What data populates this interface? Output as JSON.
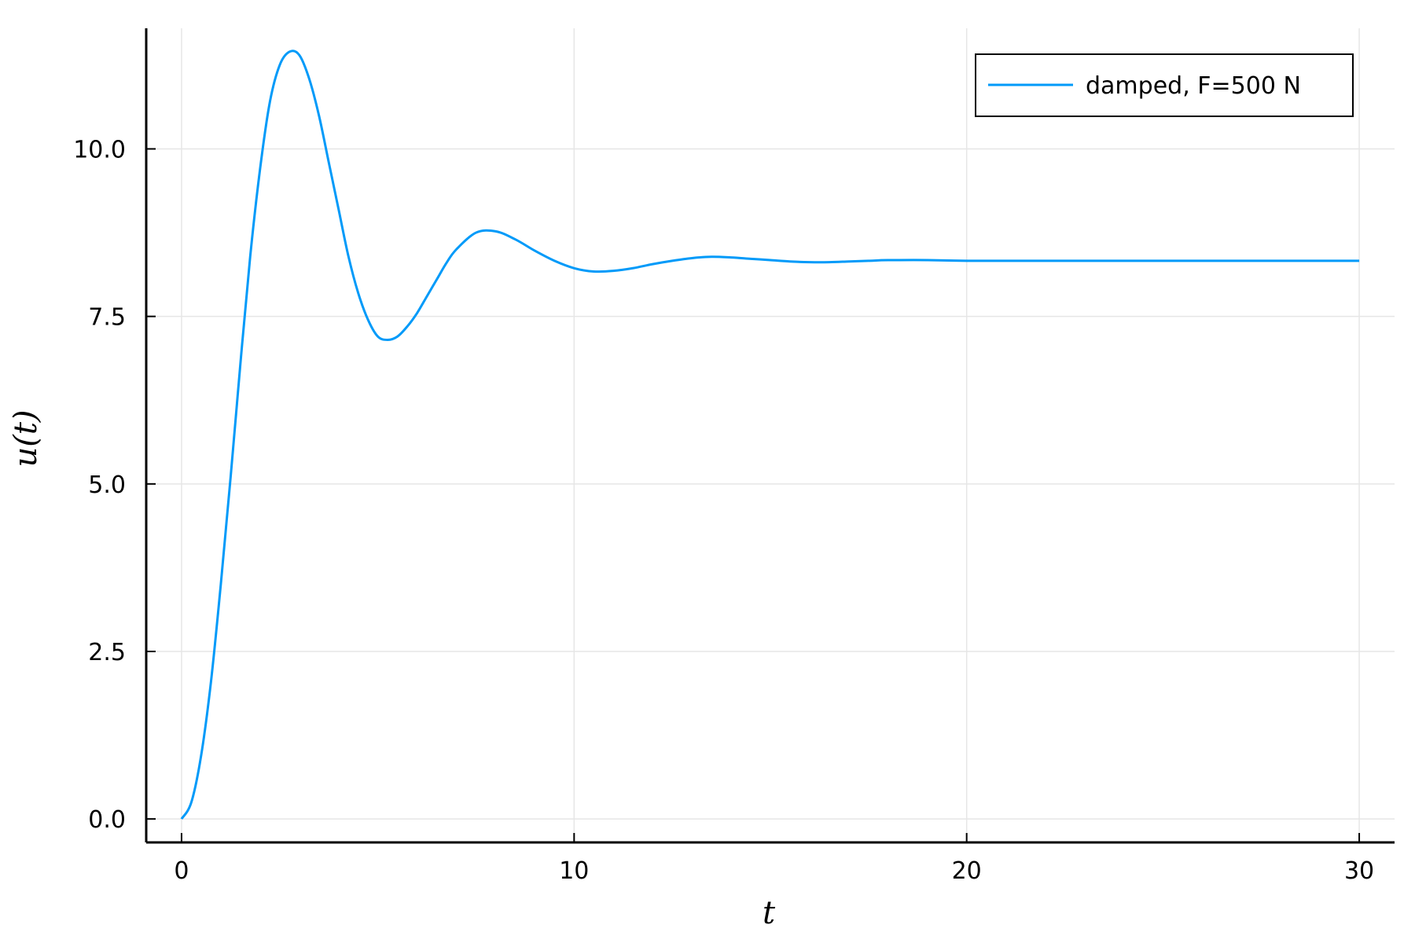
{
  "chart_data": {
    "type": "line",
    "title": "",
    "xlabel": "t",
    "ylabel": "u(t)",
    "xlim": [
      -0.9,
      30.9
    ],
    "ylim": [
      -0.35,
      11.8
    ],
    "xticks": [
      0,
      10,
      20,
      30
    ],
    "xtick_labels": [
      "0",
      "10",
      "20",
      "30"
    ],
    "yticks": [
      0,
      2.5,
      5,
      7.5,
      10
    ],
    "ytick_labels": [
      "0.0",
      "2.5",
      "5.0",
      "7.5",
      "10.0"
    ],
    "grid": true,
    "legend": {
      "position": "top-right",
      "entries": [
        "damped, F=500 N"
      ]
    },
    "series": [
      {
        "name": "damped, F=500 N",
        "color": "#009af9",
        "x": [
          0,
          0.25,
          0.5,
          0.75,
          1.0,
          1.25,
          1.5,
          1.75,
          2.0,
          2.25,
          2.5,
          2.75,
          3.0,
          3.25,
          3.5,
          3.75,
          4.0,
          4.25,
          4.5,
          4.75,
          5.0,
          5.25,
          5.5,
          5.75,
          6.0,
          6.25,
          6.5,
          6.75,
          7.0,
          7.5,
          8.0,
          8.5,
          9.0,
          9.5,
          10.0,
          10.5,
          11.0,
          11.5,
          12.0,
          12.5,
          13.0,
          13.5,
          14.0,
          14.5,
          15.0,
          15.5,
          16.0,
          16.5,
          17.0,
          17.5,
          18.0,
          19.0,
          20.0,
          21.0,
          22.0,
          23.0,
          24.0,
          25.0,
          26.0,
          27.0,
          28.0,
          29.0,
          30.0
        ],
        "y": [
          0.0,
          0.25,
          0.95,
          2.05,
          3.5,
          5.1,
          6.8,
          8.4,
          9.7,
          10.7,
          11.25,
          11.45,
          11.4,
          11.05,
          10.5,
          9.8,
          9.1,
          8.4,
          7.85,
          7.45,
          7.2,
          7.15,
          7.2,
          7.35,
          7.55,
          7.8,
          8.05,
          8.3,
          8.5,
          8.75,
          8.77,
          8.65,
          8.48,
          8.33,
          8.22,
          8.17,
          8.18,
          8.22,
          8.28,
          8.33,
          8.37,
          8.39,
          8.38,
          8.36,
          8.34,
          8.32,
          8.31,
          8.31,
          8.32,
          8.33,
          8.34,
          8.34,
          8.33,
          8.33,
          8.33,
          8.33,
          8.33,
          8.33,
          8.33,
          8.33,
          8.33,
          8.33,
          8.33
        ]
      }
    ]
  }
}
